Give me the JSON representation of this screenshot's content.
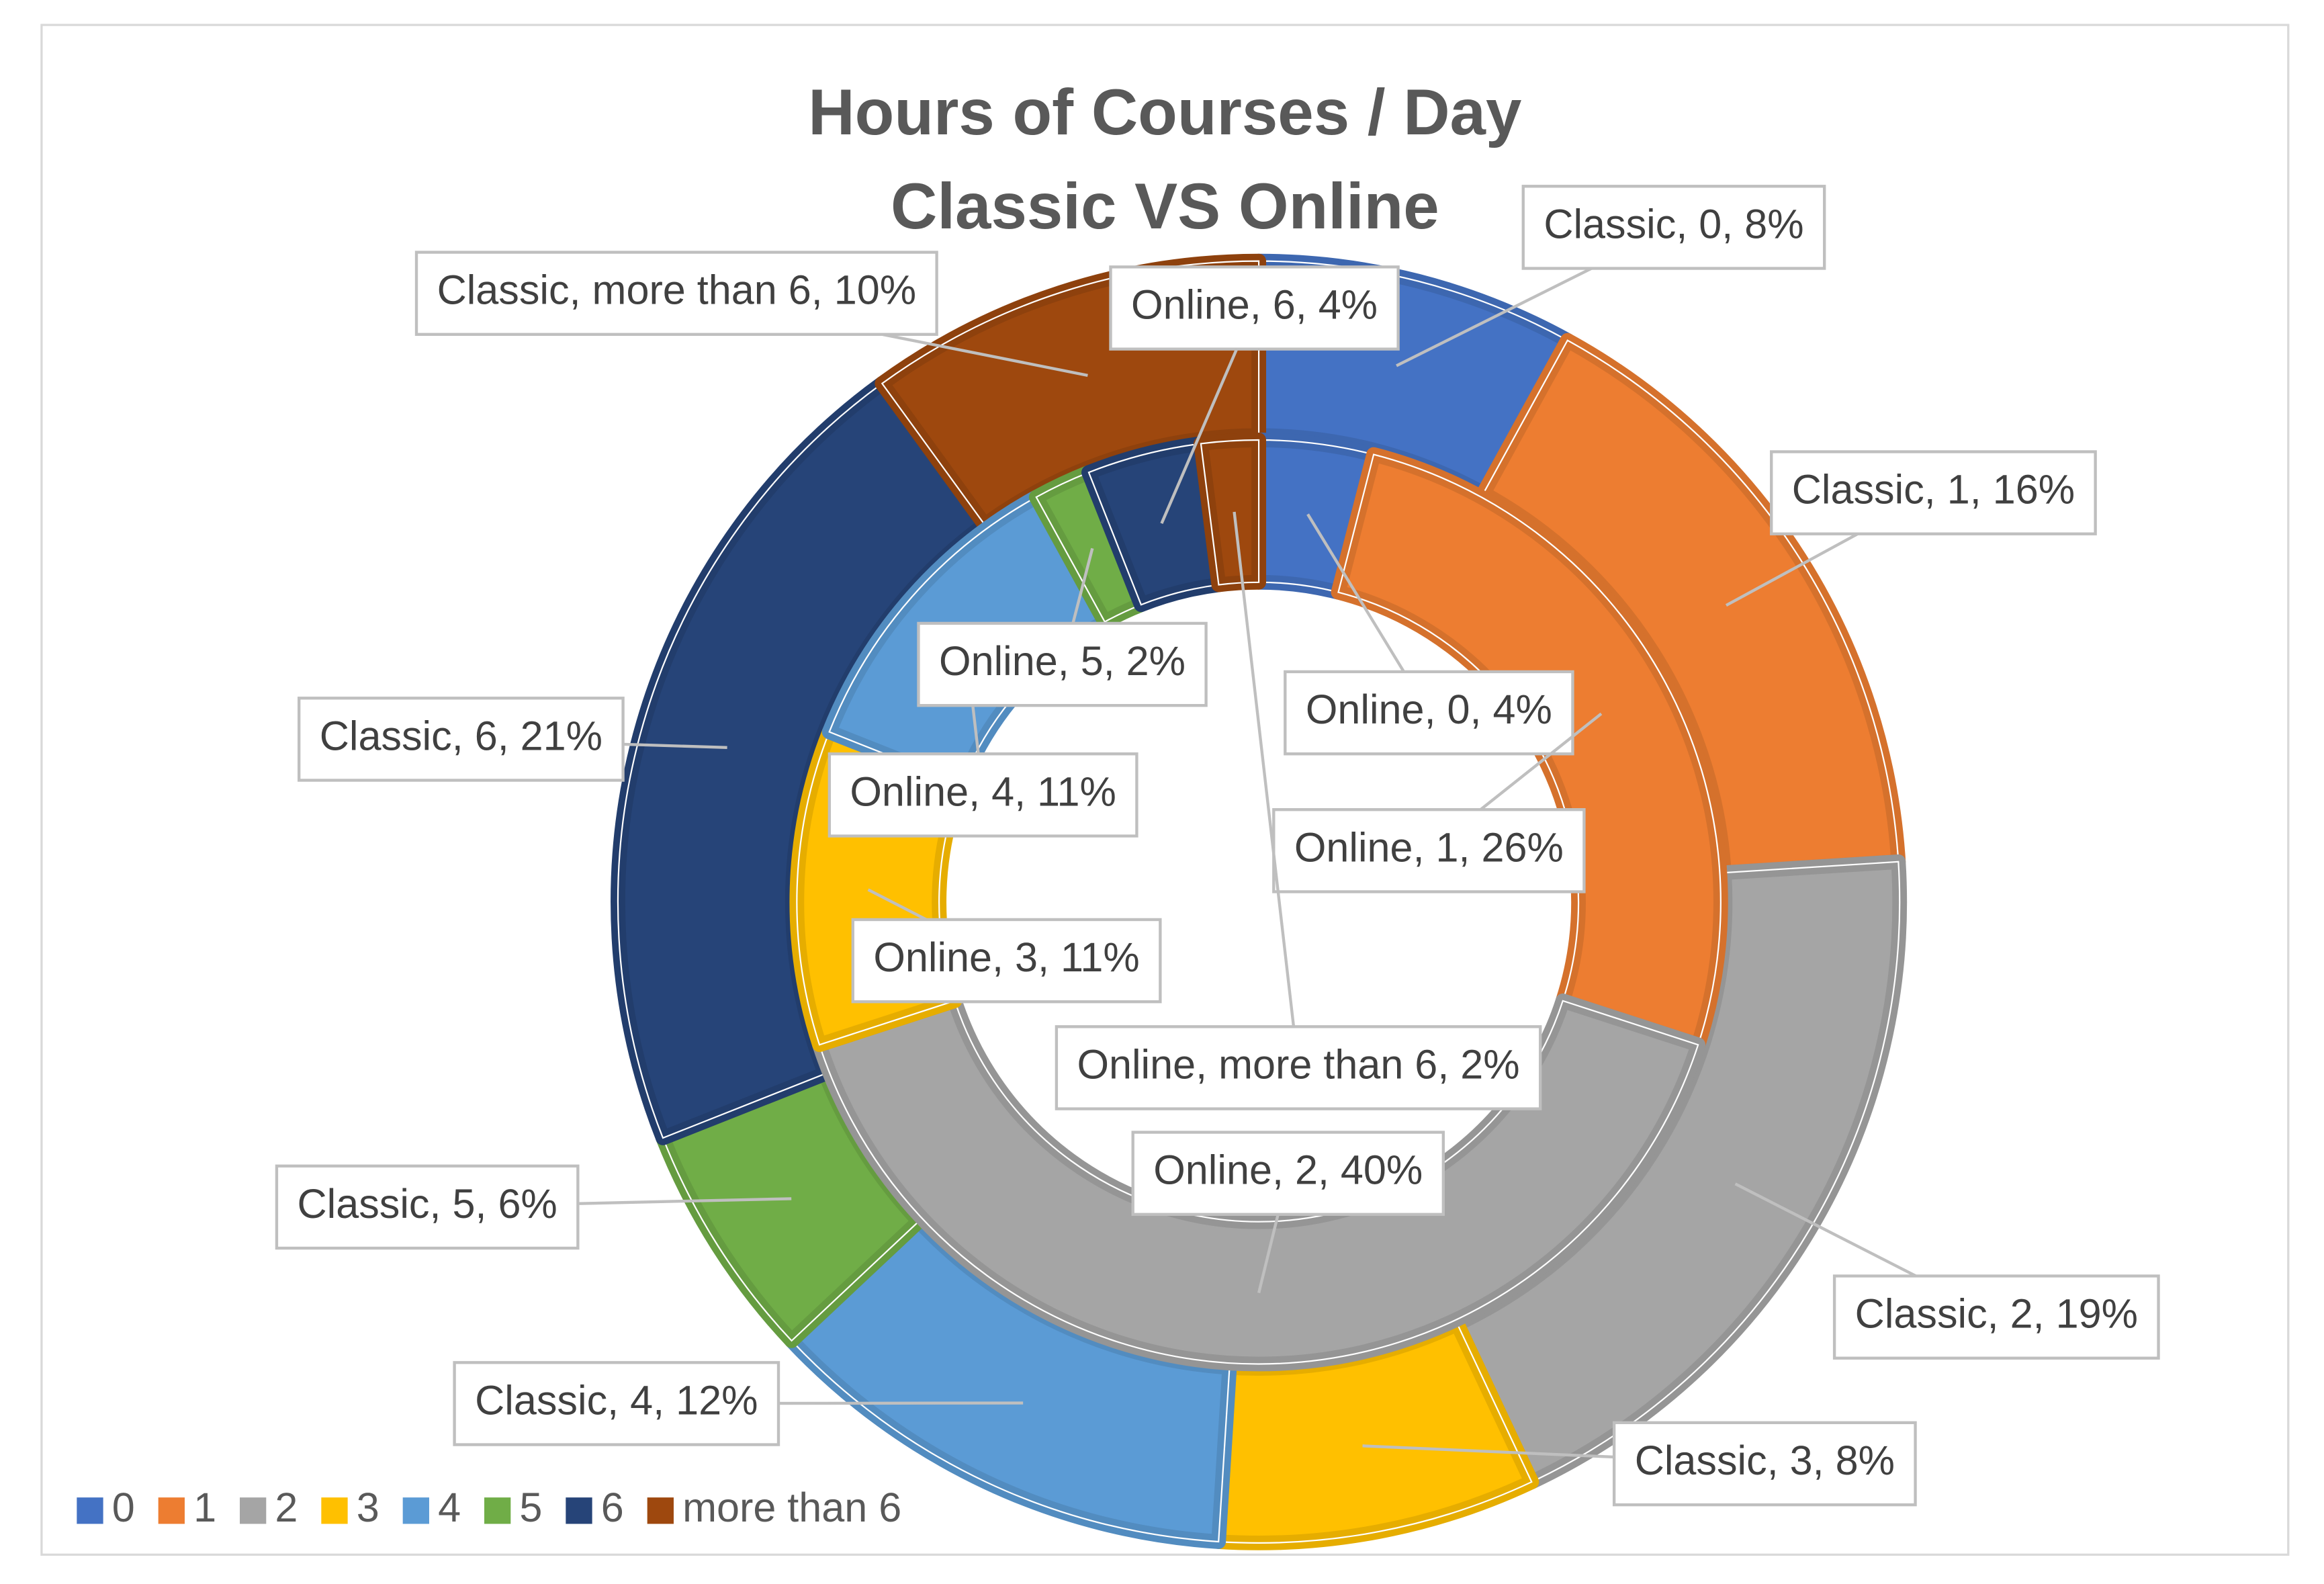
{
  "chart_data": {
    "type": "donut",
    "title": "Hours of Courses / Day",
    "subtitle": "Classic VS Online",
    "categories": [
      "0",
      "1",
      "2",
      "3",
      "4",
      "5",
      "6",
      "more than 6"
    ],
    "colors": [
      "#4472c4",
      "#ed7d31",
      "#a5a5a5",
      "#ffc000",
      "#5b9bd5",
      "#70ad47",
      "#264478",
      "#9e480e"
    ],
    "series": [
      {
        "name": "Classic",
        "values": [
          8,
          16,
          19,
          8,
          12,
          6,
          21,
          10
        ],
        "value_labels": [
          "8%",
          "16%",
          "19%",
          "8%",
          "12%",
          "6%",
          "21%",
          "10%"
        ]
      },
      {
        "name": "Online",
        "values": [
          4,
          26,
          40,
          11,
          11,
          2,
          4,
          2
        ],
        "value_labels": [
          "4%",
          "26%",
          "40%",
          "11%",
          "11%",
          "2%",
          "4%",
          "2%"
        ]
      }
    ],
    "legend": "bottom-left"
  }
}
